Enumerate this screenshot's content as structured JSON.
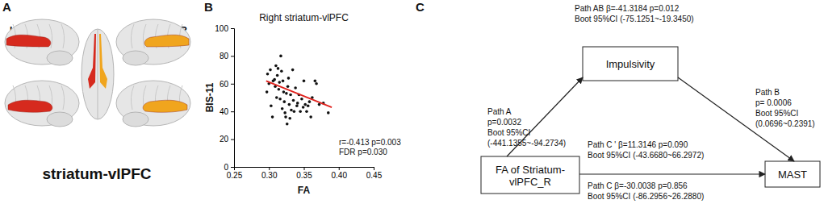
{
  "panel_a": {
    "label": "A",
    "title": "striatum-vlPFC",
    "left": "L",
    "right": "R"
  },
  "chart_data": {
    "type": "scatter",
    "label": "B",
    "title": "Right striatum-vlPFC",
    "x_label": "FA",
    "y_label": "BIS-11",
    "xlim": [
      0.25,
      0.45
    ],
    "xticks": [
      0.25,
      {
        "value": 0.3,
        "label": "0.30"
      },
      0.35,
      {
        "value": 0.4,
        "label": "0.40"
      },
      0.45
    ],
    "ylim": [
      0,
      100
    ],
    "yticks": [
      0,
      20,
      40,
      60,
      80,
      100
    ],
    "annotations": [
      "r=-0.413 p=0.003",
      "FDR p=0.030"
    ],
    "series": [
      {
        "type": "scatter",
        "marker": "circle",
        "color": "#111111",
        "x": [
          0.297,
          0.298,
          0.3,
          0.302,
          0.303,
          0.305,
          0.306,
          0.308,
          0.309,
          0.31,
          0.311,
          0.312,
          0.313,
          0.314,
          0.315,
          0.316,
          0.317,
          0.318,
          0.319,
          0.32,
          0.321,
          0.322,
          0.323,
          0.324,
          0.325,
          0.326,
          0.327,
          0.328,
          0.329,
          0.33,
          0.331,
          0.332,
          0.334,
          0.335,
          0.336,
          0.338,
          0.34,
          0.341,
          0.343,
          0.345,
          0.347,
          0.349,
          0.35,
          0.352,
          0.354,
          0.356,
          0.358,
          0.36,
          0.362,
          0.366,
          0.368,
          0.372,
          0.378,
          0.385
        ],
        "values": [
          54,
          67,
          60,
          70,
          44,
          36,
          62,
          63,
          58,
          73,
          50,
          66,
          71,
          56,
          61,
          49,
          80,
          69,
          42,
          62,
          54,
          47,
          39,
          36,
          53,
          31,
          58,
          64,
          45,
          35,
          52,
          41,
          70,
          48,
          40,
          57,
          44,
          46,
          52,
          40,
          49,
          43,
          62,
          45,
          40,
          44,
          47,
          36,
          50,
          62,
          60,
          45,
          46,
          39
        ]
      },
      {
        "type": "line",
        "color": "#e0201b",
        "x": [
          0.296,
          0.39
        ],
        "values": [
          62,
          43
        ]
      }
    ]
  },
  "panel_c": {
    "label": "C",
    "nodes": [
      {
        "lines": [
          "Impulsivity"
        ]
      },
      {
        "lines": [
          "FA of Striatum-",
          "vlPFC_R"
        ]
      },
      {
        "lines": [
          "MAST"
        ]
      }
    ],
    "paths": [
      {
        "lines": [
          "Path AB β=-41.3184 p=0.012",
          "Boot 95%CI  (-75.1251~-19.3450)"
        ]
      },
      {
        "lines": [
          "Path A",
          "p=0.0032",
          "Boot 95%CI",
          "(-441.1355~-94.2734)"
        ]
      },
      {
        "lines": [
          "Path B",
          "p= 0.0006",
          "Boot 95%CI",
          "(0.0696~0.2391)"
        ]
      },
      {
        "lines": [
          "Path C ' β=11.3146  p=0.090",
          "Boot 95%CI  (-43.6680~66.2972)"
        ]
      },
      {
        "lines": [
          "Path C β=-30.0038 p=0.856",
          "Boot 95%CI  (-86.2956~26.2880)"
        ]
      }
    ]
  }
}
